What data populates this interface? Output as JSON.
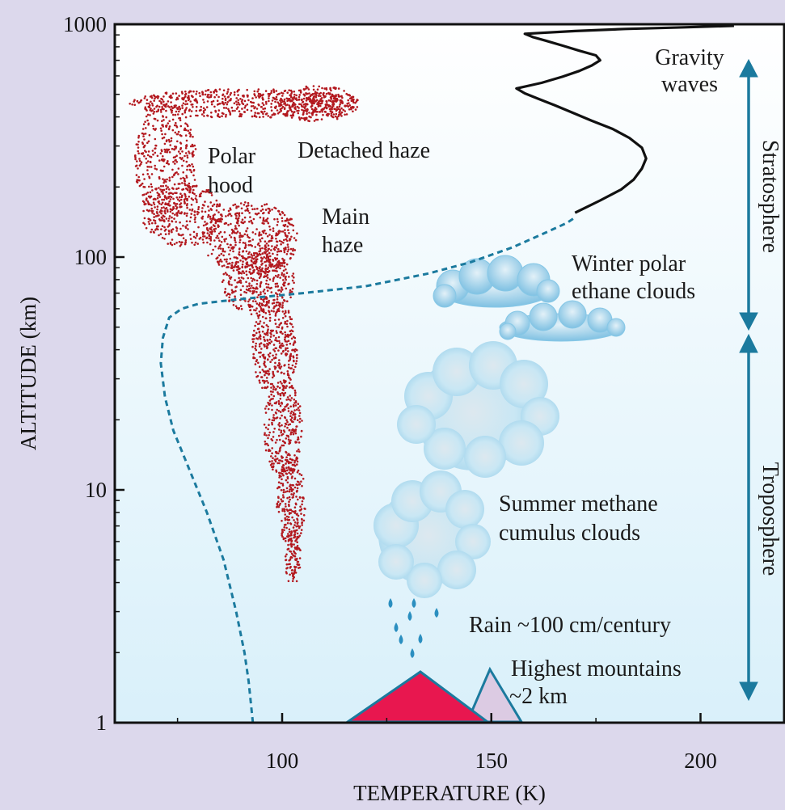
{
  "chart_data": {
    "type": "line",
    "xlabel": "TEMPERATURE (K)",
    "ylabel": "ALTITUDE (km)",
    "xlim": [
      60,
      220
    ],
    "ylim": [
      1,
      1000
    ],
    "yscale": "log",
    "x_ticks": [
      100,
      150,
      200
    ],
    "y_ticks": [
      1,
      10,
      100,
      1000
    ],
    "grid": false,
    "series": [
      {
        "style": "dashed",
        "color": "#1b7a9e",
        "x": [
          93,
          92,
          91,
          89,
          86,
          82,
          78,
          74,
          72,
          71,
          71.5,
          73,
          76,
          80,
          90,
          105,
          120,
          135,
          145,
          155,
          162,
          168,
          170
        ],
        "y": [
          1,
          1.5,
          2,
          3,
          5,
          8,
          12,
          18,
          25,
          35,
          45,
          55,
          60,
          63,
          66,
          70,
          75,
          85,
          95,
          110,
          125,
          140,
          148
        ]
      },
      {
        "style": "solid",
        "color": "#111111",
        "x": [
          170,
          176,
          181,
          184,
          186,
          187,
          186,
          183,
          179,
          174,
          169,
          165,
          161,
          158,
          156,
          162,
          167,
          171,
          174,
          176,
          175,
          171,
          167,
          163,
          160,
          158,
          170,
          182,
          196,
          208
        ],
        "y": [
          155,
          175,
          195,
          215,
          240,
          265,
          295,
          325,
          355,
          385,
          420,
          450,
          480,
          505,
          530,
          560,
          595,
          630,
          665,
          700,
          735,
          770,
          810,
          850,
          880,
          910,
          935,
          955,
          970,
          985
        ]
      }
    ],
    "annotations": {
      "gravity_waves": [
        "Gravity",
        "waves"
      ],
      "detached_haze": "Detached haze",
      "polar_hood": [
        "Polar",
        "hood"
      ],
      "main_haze": [
        "Main",
        "haze"
      ],
      "ethane_clouds": [
        "Winter polar",
        "ethane clouds"
      ],
      "methane_clouds": [
        "Summer methane",
        "cumulus clouds"
      ],
      "rain": "Rain ~100 cm/century",
      "mountains": [
        "Highest mountains",
        "~2 km"
      ]
    },
    "regions": [
      {
        "name": "Stratosphere",
        "from_km": 50,
        "to_km": 700
      },
      {
        "name": "Troposphere",
        "from_km": 1.3,
        "to_km": 45
      }
    ],
    "mountain_heights_km": [
      1.6,
      1.7
    ]
  },
  "colors": {
    "background": "#dcd8ec",
    "plot_top": "#ffffff",
    "plot_bottom": "#dff3fb",
    "haze": "#b3191f",
    "dashed": "#1b7a9e",
    "arrow": "#1b7a9e",
    "mountain_front": "#e8174f",
    "mountain_back": "#dccbe3",
    "cloud": "#bde4f4"
  }
}
